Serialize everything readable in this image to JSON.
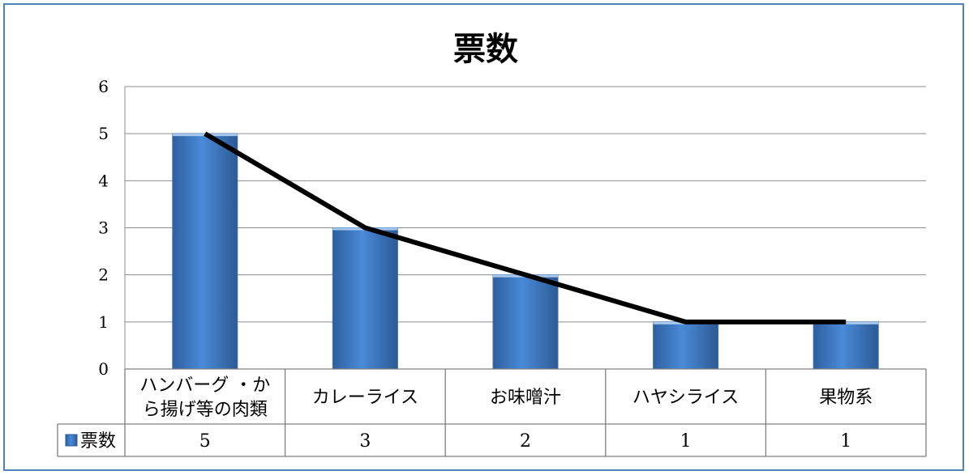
{
  "chart_data": {
    "type": "bar",
    "title": "票数",
    "categories": [
      [
        "ハンバーグ ・か",
        "ら揚げ等の肉類"
      ],
      [
        "カレーライス"
      ],
      [
        "お味噌汁"
      ],
      [
        "ハヤシライス"
      ],
      [
        "果物系"
      ]
    ],
    "series": [
      {
        "name": "票数",
        "values": [
          5,
          3,
          2,
          1,
          1
        ],
        "color": "#4a86d2"
      }
    ],
    "overlay_line": {
      "values": [
        5,
        3,
        2,
        1,
        1
      ],
      "color": "#000000"
    },
    "yticks": [
      0,
      1,
      2,
      3,
      4,
      5,
      6
    ],
    "ylim": [
      0,
      6
    ],
    "grid": true,
    "legend": "data-table-left",
    "data_table": true
  }
}
